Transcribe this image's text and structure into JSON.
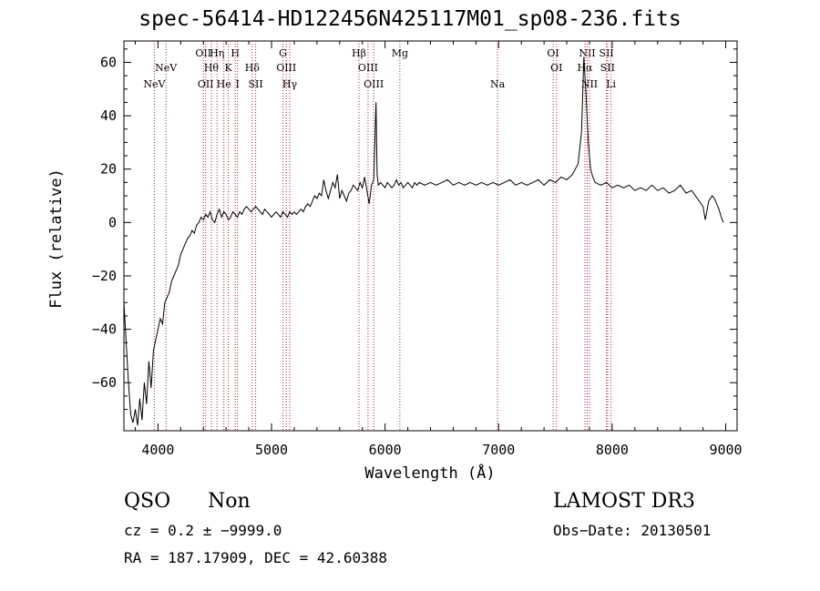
{
  "chart_data": {
    "type": "line",
    "title": "spec-56414-HD122456N425117M01_sp08-236.fits",
    "xlabel": "Wavelength (Å)",
    "ylabel": "Flux (relative)",
    "xlim": [
      3700,
      9100
    ],
    "ylim": [
      -78,
      68
    ],
    "x_ticks": [
      4000,
      5000,
      6000,
      7000,
      8000,
      9000
    ],
    "y_ticks": [
      -60,
      -40,
      -20,
      0,
      20,
      40,
      60
    ],
    "x_tick_labels": [
      "4000",
      "5000",
      "6000",
      "7000",
      "8000",
      "9000"
    ],
    "y_tick_labels": [
      "−60",
      "−40",
      "−20",
      "0",
      "20",
      "40",
      "60"
    ],
    "grid": false,
    "series": [
      {
        "name": "spectrum",
        "color": "#000000",
        "points": [
          [
            3700,
            -30
          ],
          [
            3720,
            -45
          ],
          [
            3740,
            -60
          ],
          [
            3760,
            -72
          ],
          [
            3780,
            -75
          ],
          [
            3800,
            -70
          ],
          [
            3820,
            -76
          ],
          [
            3840,
            -66
          ],
          [
            3860,
            -74
          ],
          [
            3880,
            -60
          ],
          [
            3900,
            -68
          ],
          [
            3920,
            -52
          ],
          [
            3940,
            -62
          ],
          [
            3960,
            -48
          ],
          [
            3980,
            -44
          ],
          [
            4000,
            -40
          ],
          [
            4020,
            -36
          ],
          [
            4040,
            -38
          ],
          [
            4060,
            -30
          ],
          [
            4080,
            -28
          ],
          [
            4100,
            -26
          ],
          [
            4120,
            -22
          ],
          [
            4140,
            -20
          ],
          [
            4160,
            -18
          ],
          [
            4180,
            -16
          ],
          [
            4200,
            -12
          ],
          [
            4220,
            -10
          ],
          [
            4240,
            -8
          ],
          [
            4260,
            -6
          ],
          [
            4280,
            -5
          ],
          [
            4300,
            -3
          ],
          [
            4320,
            -4
          ],
          [
            4340,
            -1
          ],
          [
            4360,
            0
          ],
          [
            4380,
            2
          ],
          [
            4400,
            1
          ],
          [
            4420,
            3
          ],
          [
            4440,
            2
          ],
          [
            4460,
            4
          ],
          [
            4480,
            1
          ],
          [
            4500,
            0
          ],
          [
            4520,
            3
          ],
          [
            4540,
            5
          ],
          [
            4560,
            2
          ],
          [
            4580,
            4
          ],
          [
            4600,
            3
          ],
          [
            4620,
            1
          ],
          [
            4640,
            2
          ],
          [
            4660,
            4
          ],
          [
            4680,
            3
          ],
          [
            4700,
            2
          ],
          [
            4720,
            4
          ],
          [
            4740,
            3
          ],
          [
            4760,
            5
          ],
          [
            4780,
            6
          ],
          [
            4800,
            5
          ],
          [
            4820,
            4
          ],
          [
            4840,
            5
          ],
          [
            4860,
            6
          ],
          [
            4880,
            5
          ],
          [
            4900,
            4
          ],
          [
            4920,
            3
          ],
          [
            4940,
            5
          ],
          [
            4960,
            4
          ],
          [
            4980,
            3
          ],
          [
            5000,
            2
          ],
          [
            5020,
            3
          ],
          [
            5040,
            4
          ],
          [
            5060,
            3
          ],
          [
            5080,
            2
          ],
          [
            5100,
            4
          ],
          [
            5120,
            3
          ],
          [
            5140,
            2
          ],
          [
            5160,
            4
          ],
          [
            5180,
            3
          ],
          [
            5200,
            4
          ],
          [
            5220,
            3
          ],
          [
            5240,
            4
          ],
          [
            5260,
            5
          ],
          [
            5280,
            4
          ],
          [
            5300,
            6
          ],
          [
            5320,
            7
          ],
          [
            5340,
            6
          ],
          [
            5360,
            8
          ],
          [
            5380,
            10
          ],
          [
            5400,
            9
          ],
          [
            5420,
            11
          ],
          [
            5440,
            10
          ],
          [
            5460,
            16
          ],
          [
            5480,
            12
          ],
          [
            5500,
            9
          ],
          [
            5520,
            12
          ],
          [
            5540,
            15
          ],
          [
            5560,
            13
          ],
          [
            5580,
            18
          ],
          [
            5600,
            9
          ],
          [
            5620,
            12
          ],
          [
            5640,
            10
          ],
          [
            5660,
            8
          ],
          [
            5680,
            11
          ],
          [
            5700,
            12
          ],
          [
            5720,
            14
          ],
          [
            5740,
            13
          ],
          [
            5760,
            12
          ],
          [
            5780,
            15
          ],
          [
            5800,
            13
          ],
          [
            5820,
            17
          ],
          [
            5840,
            12
          ],
          [
            5860,
            7
          ],
          [
            5880,
            14
          ],
          [
            5900,
            16
          ],
          [
            5920,
            45
          ],
          [
            5930,
            18
          ],
          [
            5940,
            14
          ],
          [
            5960,
            15
          ],
          [
            5980,
            14
          ],
          [
            6000,
            13
          ],
          [
            6020,
            15
          ],
          [
            6040,
            14
          ],
          [
            6060,
            13
          ],
          [
            6080,
            14
          ],
          [
            6100,
            16
          ],
          [
            6120,
            14
          ],
          [
            6140,
            15
          ],
          [
            6160,
            13
          ],
          [
            6180,
            14
          ],
          [
            6200,
            15
          ],
          [
            6220,
            14
          ],
          [
            6240,
            13
          ],
          [
            6260,
            15
          ],
          [
            6280,
            14
          ],
          [
            6300,
            15
          ],
          [
            6350,
            14
          ],
          [
            6400,
            15
          ],
          [
            6450,
            14
          ],
          [
            6500,
            15
          ],
          [
            6550,
            16
          ],
          [
            6600,
            14
          ],
          [
            6650,
            15
          ],
          [
            6700,
            14
          ],
          [
            6750,
            15
          ],
          [
            6800,
            14
          ],
          [
            6850,
            15
          ],
          [
            6900,
            14
          ],
          [
            6950,
            15
          ],
          [
            7000,
            14
          ],
          [
            7050,
            15
          ],
          [
            7100,
            16
          ],
          [
            7150,
            14
          ],
          [
            7200,
            15
          ],
          [
            7250,
            14
          ],
          [
            7300,
            15
          ],
          [
            7350,
            16
          ],
          [
            7400,
            14
          ],
          [
            7450,
            16
          ],
          [
            7500,
            15
          ],
          [
            7550,
            17
          ],
          [
            7600,
            16
          ],
          [
            7650,
            18
          ],
          [
            7700,
            22
          ],
          [
            7730,
            34
          ],
          [
            7750,
            62
          ],
          [
            7770,
            48
          ],
          [
            7790,
            30
          ],
          [
            7810,
            20
          ],
          [
            7830,
            17
          ],
          [
            7850,
            15
          ],
          [
            7900,
            14
          ],
          [
            7950,
            15
          ],
          [
            8000,
            13
          ],
          [
            8050,
            14
          ],
          [
            8100,
            13
          ],
          [
            8150,
            14
          ],
          [
            8200,
            12
          ],
          [
            8250,
            13
          ],
          [
            8300,
            12
          ],
          [
            8350,
            14
          ],
          [
            8400,
            12
          ],
          [
            8450,
            13
          ],
          [
            8500,
            11
          ],
          [
            8550,
            12
          ],
          [
            8600,
            14
          ],
          [
            8650,
            11
          ],
          [
            8700,
            12
          ],
          [
            8750,
            9
          ],
          [
            8800,
            6
          ],
          [
            8820,
            1
          ],
          [
            8850,
            8
          ],
          [
            8880,
            10
          ],
          [
            8900,
            9
          ],
          [
            8920,
            7
          ],
          [
            8940,
            5
          ],
          [
            8960,
            2
          ],
          [
            8980,
            0
          ]
        ]
      }
    ],
    "line_markers": [
      {
        "wavelength": 3968,
        "label": "NeV",
        "row": 3
      },
      {
        "wavelength": 4070,
        "label": "NeV",
        "row": 2
      },
      {
        "wavelength": 4400,
        "label": "OII",
        "row": 1
      },
      {
        "wavelength": 4420,
        "label": "OII",
        "row": 3
      },
      {
        "wavelength": 4470,
        "label": "Hθ",
        "row": 2
      },
      {
        "wavelength": 4520,
        "label": "Hη",
        "row": 1
      },
      {
        "wavelength": 4580,
        "label": "He",
        "row": 3
      },
      {
        "wavelength": 4620,
        "label": "K",
        "row": 2
      },
      {
        "wavelength": 4680,
        "label": "H",
        "row": 1
      },
      {
        "wavelength": 4700,
        "label": "I",
        "row": 3
      },
      {
        "wavelength": 4830,
        "label": "Hδ",
        "row": 2
      },
      {
        "wavelength": 4860,
        "label": "SII",
        "row": 3
      },
      {
        "wavelength": 5100,
        "label": "G",
        "row": 1
      },
      {
        "wavelength": 5130,
        "label": "OIII",
        "row": 2
      },
      {
        "wavelength": 5160,
        "label": "Hγ",
        "row": 3
      },
      {
        "wavelength": 5770,
        "label": "Hβ",
        "row": 1
      },
      {
        "wavelength": 5850,
        "label": "OIII",
        "row": 2
      },
      {
        "wavelength": 5900,
        "label": "OIII",
        "row": 3
      },
      {
        "wavelength": 6130,
        "label": "Mg",
        "row": 1
      },
      {
        "wavelength": 6990,
        "label": "Na",
        "row": 3
      },
      {
        "wavelength": 7480,
        "label": "OI",
        "row": 1
      },
      {
        "wavelength": 7510,
        "label": "OI",
        "row": 2
      },
      {
        "wavelength": 7780,
        "label": "NII",
        "row": 1
      },
      {
        "wavelength": 7760,
        "label": "Hα",
        "row": 2
      },
      {
        "wavelength": 7800,
        "label": "NII",
        "row": 3
      },
      {
        "wavelength": 7950,
        "label": "SII",
        "row": 1
      },
      {
        "wavelength": 7960,
        "label": "SII",
        "row": 2
      },
      {
        "wavelength": 7990,
        "label": "Li",
        "row": 3
      }
    ]
  },
  "info": {
    "class": "QSO",
    "subclass": "Non",
    "survey": "LAMOST DR3",
    "cz": "cz = 0.2 ± −9999.0",
    "obs_date": "Obs−Date: 20130501",
    "radec": "RA = 187.17909, DEC =  42.60388"
  },
  "colors": {
    "spectrum": "#000000",
    "marker": "#b22222",
    "axis": "#000000"
  }
}
